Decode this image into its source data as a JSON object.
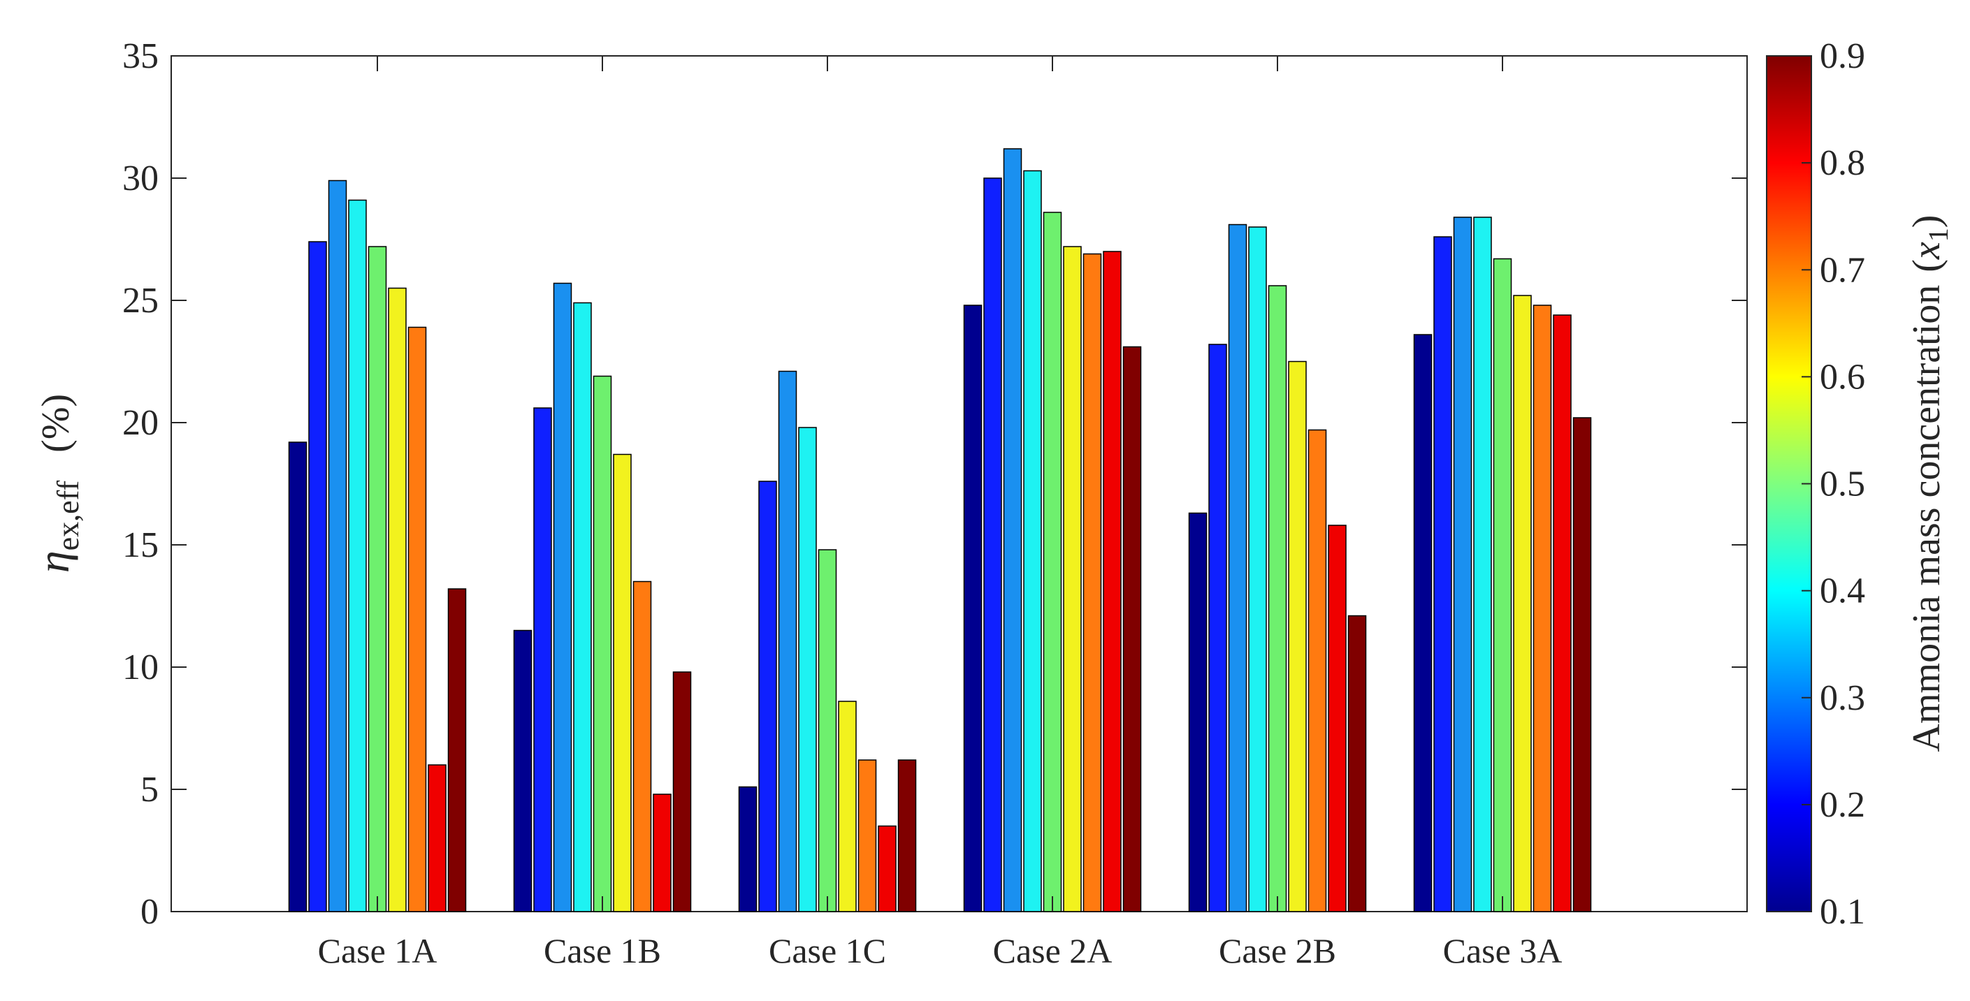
{
  "chart_data": {
    "type": "bar",
    "title": "",
    "xlabel": "",
    "ylabel": {
      "symbol": "η",
      "subscript": "ex,eff",
      "unit": "(%)"
    },
    "ylim": [
      0,
      35
    ],
    "yticks": [
      "0",
      "5",
      "10",
      "15",
      "20",
      "25",
      "30",
      "35"
    ],
    "categories": [
      "Case 1A",
      "Case 1B",
      "Case 1C",
      "Case 2A",
      "Case 2B",
      "Case 3A"
    ],
    "series": [
      {
        "name": "x1 = 0.1",
        "x1": 0.1,
        "color": "#00008f",
        "values": [
          19.2,
          11.5,
          5.1,
          24.8,
          16.3,
          23.6
        ]
      },
      {
        "name": "x1 = 0.2",
        "x1": 0.2,
        "color": "#0f20ff",
        "values": [
          27.4,
          20.6,
          17.6,
          30.0,
          23.2,
          27.6
        ]
      },
      {
        "name": "x1 = 0.3",
        "x1": 0.3,
        "color": "#1a90f0",
        "values": [
          29.9,
          25.7,
          22.1,
          31.2,
          28.1,
          28.4
        ]
      },
      {
        "name": "x1 = 0.4",
        "x1": 0.4,
        "color": "#1ef2f2",
        "values": [
          29.1,
          24.9,
          19.8,
          30.3,
          28.0,
          28.4
        ]
      },
      {
        "name": "x1 = 0.5",
        "x1": 0.5,
        "color": "#6ef06e",
        "values": [
          27.2,
          21.9,
          14.8,
          28.6,
          25.6,
          26.7
        ]
      },
      {
        "name": "x1 = 0.6",
        "x1": 0.6,
        "color": "#f2f21e",
        "values": [
          25.5,
          18.7,
          8.6,
          27.2,
          22.5,
          25.2
        ]
      },
      {
        "name": "x1 = 0.7",
        "x1": 0.7,
        "color": "#ff7a10",
        "values": [
          23.9,
          13.5,
          6.2,
          26.9,
          19.7,
          24.8
        ]
      },
      {
        "name": "x1 = 0.8",
        "x1": 0.8,
        "color": "#f00000",
        "values": [
          6.0,
          4.8,
          3.5,
          27.0,
          15.8,
          24.4
        ]
      },
      {
        "name": "x1 = 0.9",
        "x1": 0.9,
        "color": "#800000",
        "values": [
          13.2,
          9.8,
          6.2,
          23.1,
          12.1,
          20.2
        ]
      }
    ],
    "colorbar": {
      "label": "Ammonia mass concentration",
      "label_var": "x",
      "label_sub": "1",
      "range": [
        0.1,
        0.9
      ],
      "ticks": [
        "0.1",
        "0.2",
        "0.3",
        "0.4",
        "0.5",
        "0.6",
        "0.7",
        "0.8",
        "0.9"
      ],
      "colormap": "jet"
    },
    "grid": false,
    "legend": "colorbar-right"
  }
}
